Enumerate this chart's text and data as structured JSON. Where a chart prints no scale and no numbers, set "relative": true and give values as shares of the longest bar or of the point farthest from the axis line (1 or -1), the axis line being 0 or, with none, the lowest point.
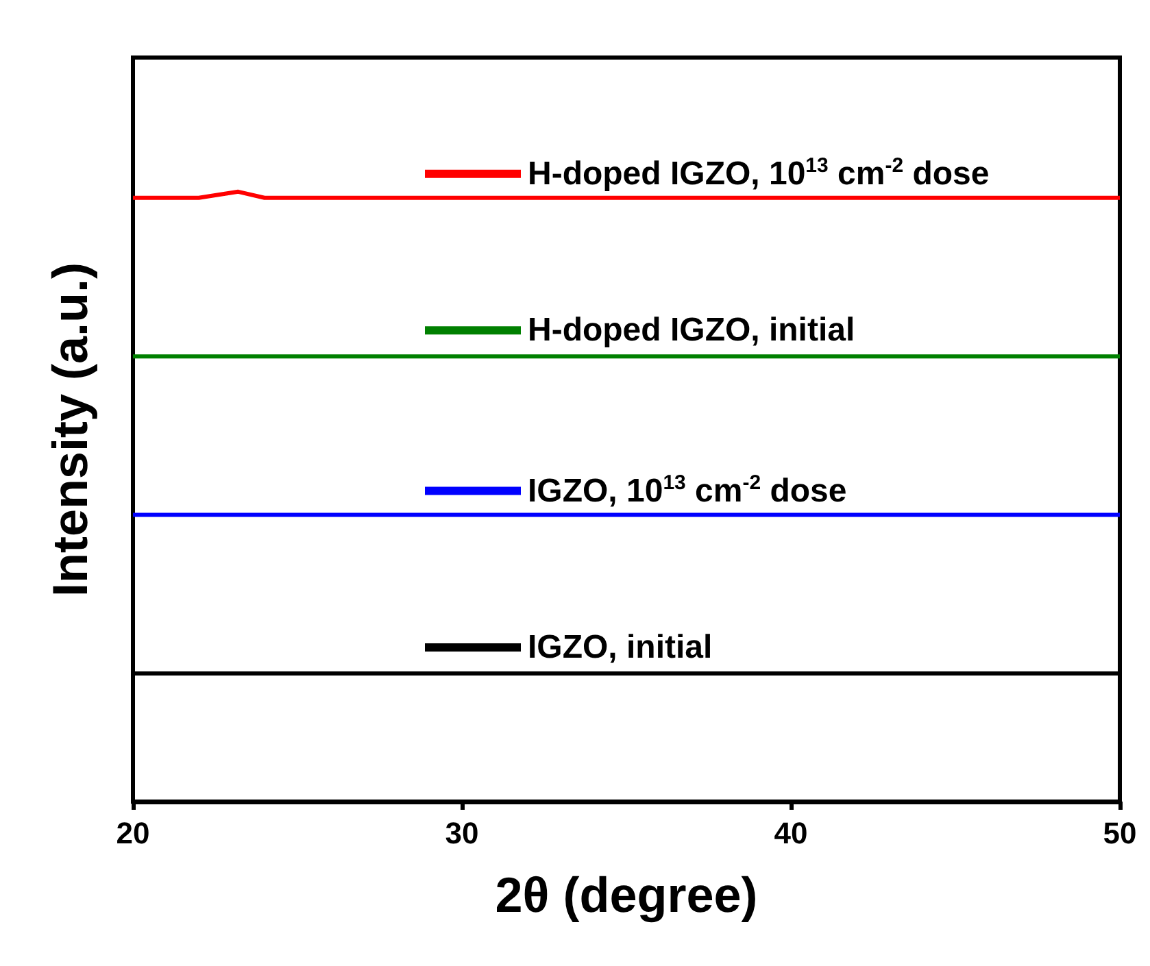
{
  "chart_data": {
    "type": "line",
    "relative": true,
    "xlabel": "2θ (degree)",
    "ylabel": "Intensity (a.u.)",
    "xlim": [
      20,
      50
    ],
    "xticks": [
      20,
      30,
      40,
      50
    ],
    "grid": false,
    "marker": "none",
    "line_style": "solid",
    "legend": "center",
    "series": [
      {
        "name": "IGZO, initial",
        "color": "#000000",
        "x": [
          20,
          22,
          24,
          26,
          28,
          30,
          32,
          34,
          36,
          38,
          40,
          42,
          44,
          46,
          48,
          50
        ],
        "values": [
          0.21,
          0.21,
          0.21,
          0.21,
          0.21,
          0.21,
          0.21,
          0.21,
          0.21,
          0.21,
          0.21,
          0.21,
          0.21,
          0.21,
          0.21,
          0.21
        ]
      },
      {
        "name": "IGZO, 10$^{13}$ cm$^{-2}$ dose",
        "color": "#0000ff",
        "x": [
          20,
          22,
          24,
          26,
          28,
          30,
          32,
          34,
          36,
          38,
          40,
          42,
          44,
          46,
          48,
          50
        ],
        "values": [
          0.47,
          0.47,
          0.47,
          0.47,
          0.47,
          0.47,
          0.47,
          0.47,
          0.47,
          0.47,
          0.47,
          0.47,
          0.47,
          0.47,
          0.47,
          0.47
        ]
      },
      {
        "name": "H-doped IGZO, initial",
        "color": "#008000",
        "x": [
          20,
          22,
          24,
          26,
          28,
          30,
          32,
          34,
          36,
          38,
          40,
          42,
          44,
          46,
          48,
          50
        ],
        "values": [
          0.73,
          0.73,
          0.73,
          0.73,
          0.73,
          0.73,
          0.73,
          0.73,
          0.73,
          0.73,
          0.73,
          0.73,
          0.73,
          0.73,
          0.73,
          0.73
        ]
      },
      {
        "name": "H-doped IGZO, 10$^{13}$ cm$^{-2}$ dose",
        "color": "#ff0000",
        "x": [
          20,
          22,
          23.2,
          24,
          26,
          28,
          30,
          32,
          34,
          36,
          38,
          40,
          42,
          44,
          46,
          48,
          50
        ],
        "values": [
          0.99,
          0.99,
          1,
          0.99,
          0.99,
          0.99,
          0.99,
          0.99,
          0.99,
          0.99,
          0.99,
          0.99,
          0.99,
          0.99,
          0.99,
          0.99,
          0.99
        ]
      }
    ]
  }
}
